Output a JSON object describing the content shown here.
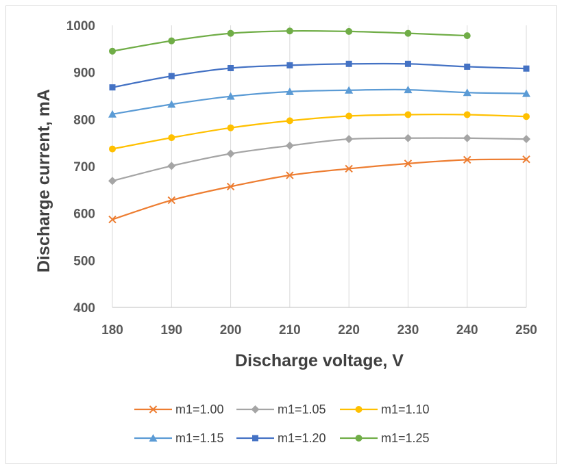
{
  "chart_data": {
    "type": "line",
    "xlabel": "Discharge voltage, V",
    "ylabel": "Discharge current, mA",
    "x": [
      180,
      190,
      200,
      210,
      220,
      230,
      240,
      250
    ],
    "xlim": [
      180,
      250
    ],
    "ylim": [
      400,
      1000
    ],
    "xticks": [
      "180",
      "190",
      "200",
      "210",
      "220",
      "230",
      "240",
      "250"
    ],
    "yticks": [
      "400",
      "500",
      "600",
      "700",
      "800",
      "900",
      "1000"
    ],
    "grid": "vertical",
    "legend_position": "bottom",
    "series": [
      {
        "name": "m1=1.00",
        "color": "#ED7D31",
        "marker": "x",
        "values": [
          587,
          628,
          657,
          681,
          695,
          706,
          714,
          715
        ]
      },
      {
        "name": "m1=1.05",
        "color": "#A5A5A5",
        "marker": "diamond",
        "values": [
          669,
          701,
          727,
          744,
          758,
          760,
          760,
          758
        ]
      },
      {
        "name": "m1=1.10",
        "color": "#FFC000",
        "marker": "circle",
        "values": [
          737,
          761,
          782,
          797,
          807,
          810,
          810,
          806
        ]
      },
      {
        "name": "m1=1.15",
        "color": "#5B9BD5",
        "marker": "triangle",
        "values": [
          811,
          832,
          849,
          859,
          862,
          863,
          857,
          855
        ]
      },
      {
        "name": "m1=1.20",
        "color": "#4472C4",
        "marker": "square",
        "values": [
          868,
          892,
          909,
          915,
          918,
          918,
          912,
          908
        ]
      },
      {
        "name": "m1=1.25",
        "color": "#70AD47",
        "marker": "circle",
        "values": [
          945,
          967,
          983,
          988,
          987,
          983,
          978,
          null
        ]
      }
    ]
  }
}
